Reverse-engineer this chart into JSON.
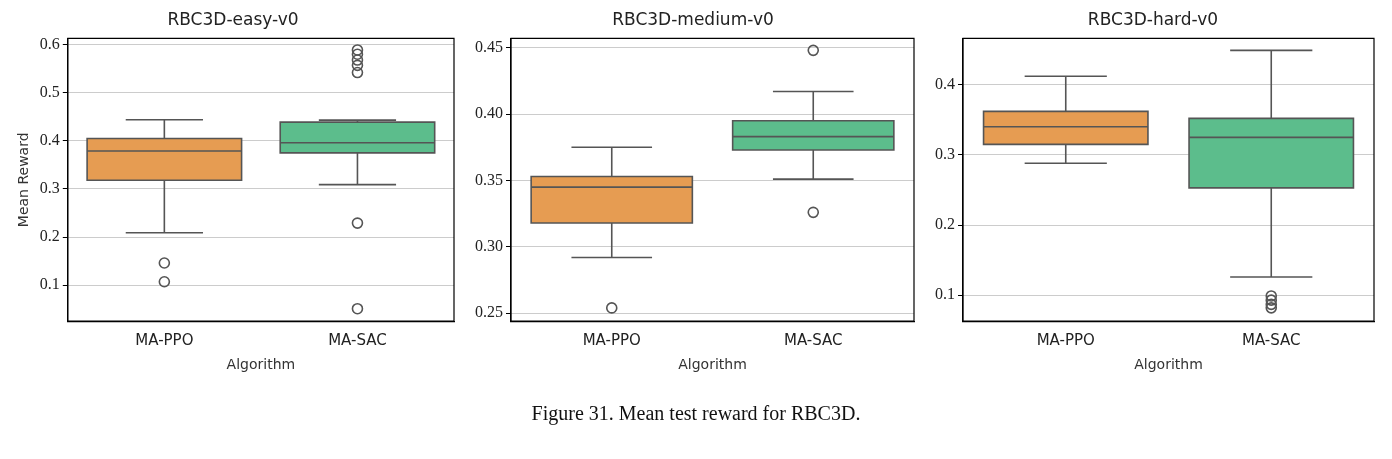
{
  "chart_data": [
    {
      "type": "box",
      "title": "RBC3D-easy-v0",
      "xlabel": "Algorithm",
      "ylabel": "Mean Reward",
      "categories": [
        "MA-PPO",
        "MA-SAC"
      ],
      "colors": [
        "#e69c52",
        "#5cbd8c"
      ],
      "ylim": [
        0.025,
        0.613
      ],
      "yticks": [
        0.1,
        0.2,
        0.3,
        0.4,
        0.5,
        0.6
      ],
      "grid": "y",
      "boxes": [
        {
          "low": 0.209,
          "q1": 0.318,
          "median": 0.379,
          "q3": 0.405,
          "high": 0.444,
          "outliers": [
            0.146,
            0.107
          ]
        },
        {
          "low": 0.309,
          "q1": 0.375,
          "median": 0.396,
          "q3": 0.439,
          "high": 0.443,
          "outliers": [
            0.229,
            0.051,
            0.542,
            0.557,
            0.568,
            0.58,
            0.589
          ]
        }
      ]
    },
    {
      "type": "box",
      "title": "RBC3D-medium-v0",
      "xlabel": "Algorithm",
      "categories": [
        "MA-PPO",
        "MA-SAC"
      ],
      "colors": [
        "#e69c52",
        "#5cbd8c"
      ],
      "ylim": [
        0.244,
        0.457
      ],
      "yticks": [
        0.25,
        {
          "value": 0.3,
          "label": "0.30"
        },
        0.35,
        {
          "value": 0.4,
          "label": "0.40"
        },
        0.45
      ],
      "grid": "y",
      "boxes": [
        {
          "low": 0.292,
          "q1": 0.318,
          "median": 0.345,
          "q3": 0.353,
          "high": 0.375,
          "outliers": [
            0.254
          ]
        },
        {
          "low": 0.351,
          "q1": 0.373,
          "median": 0.383,
          "q3": 0.395,
          "high": 0.417,
          "outliers": [
            0.448,
            0.326
          ]
        }
      ],
      "annotations": [
        "Figure 31. Mean test reward for RBC3D."
      ]
    },
    {
      "type": "box",
      "title": "RBC3D-hard-v0",
      "xlabel": "Algorithm",
      "categories": [
        "MA-PPO",
        "MA-SAC"
      ],
      "colors": [
        "#e69c52",
        "#5cbd8c"
      ],
      "ylim": [
        0.063,
        0.466
      ],
      "yticks": [
        0.1,
        0.2,
        0.3,
        0.4
      ],
      "grid": "y",
      "boxes": [
        {
          "low": 0.288,
          "q1": 0.315,
          "median": 0.34,
          "q3": 0.362,
          "high": 0.412
        },
        {
          "low": 0.126,
          "q1": 0.253,
          "median": 0.325,
          "q3": 0.352,
          "high": 0.449,
          "outliers": [
            0.099,
            0.093,
            0.087,
            0.082
          ]
        }
      ]
    }
  ]
}
